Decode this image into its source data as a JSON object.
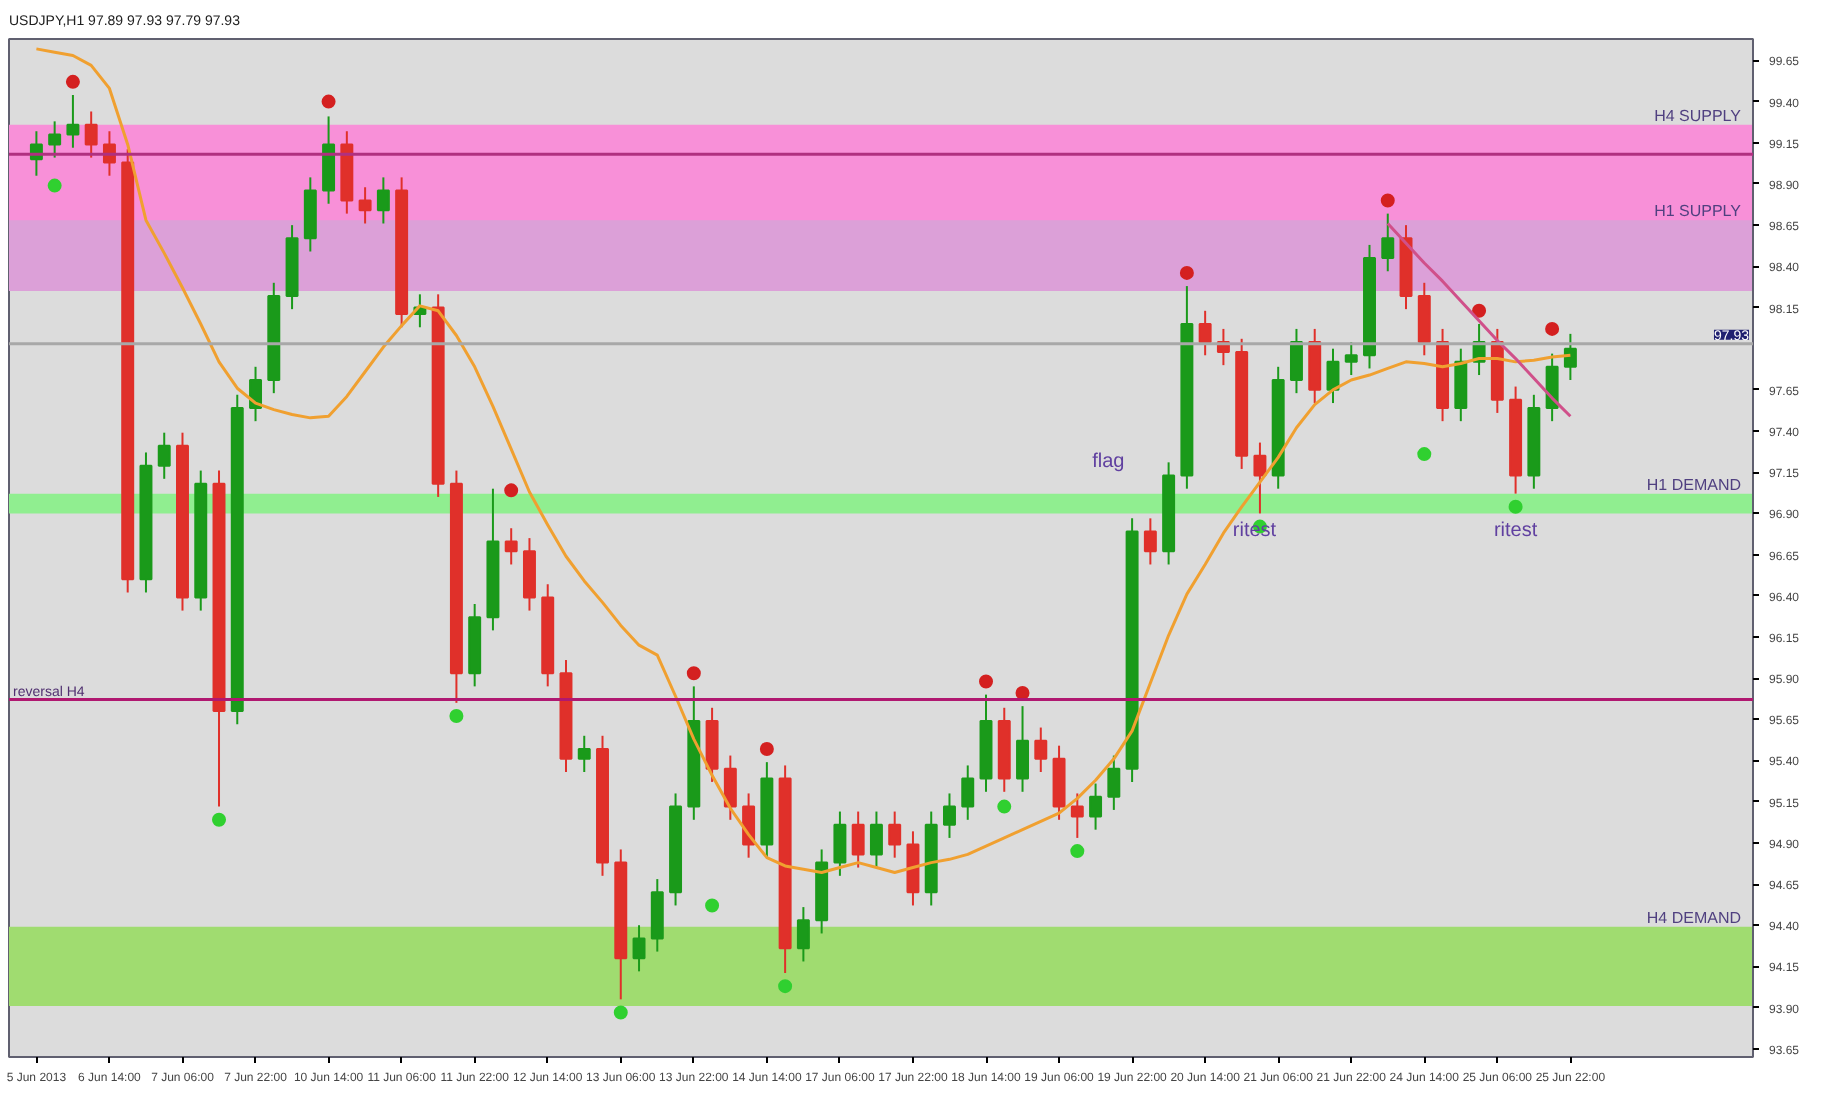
{
  "chart_data": {
    "type": "candlestick",
    "title": "USDJPY,H1 97.89 97.93 97.79 97.93",
    "categories": [
      "5 Jun 2013",
      null,
      null,
      null,
      "6 Jun 14:00",
      null,
      null,
      null,
      "7 Jun 06:00",
      null,
      null,
      null,
      "7 Jun 22:00",
      null,
      null,
      null,
      "10 Jun 14:00",
      null,
      null,
      null,
      "11 Jun 06:00",
      null,
      null,
      null,
      "11 Jun 22:00",
      null,
      null,
      null,
      "12 Jun 14:00",
      null,
      null,
      null,
      "13 Jun 06:00",
      null,
      null,
      null,
      "13 Jun 22:00",
      null,
      null,
      null,
      "14 Jun 14:00",
      null,
      null,
      null,
      "17 Jun 06:00",
      null,
      null,
      null,
      "17 Jun 22:00",
      null,
      null,
      null,
      "18 Jun 14:00",
      null,
      null,
      null,
      "19 Jun 06:00",
      null,
      null,
      null,
      "19 Jun 22:00",
      null,
      null,
      null,
      "20 Jun 14:00",
      null,
      null,
      null,
      "21 Jun 06:00",
      null,
      null,
      null,
      "21 Jun 22:00",
      null,
      null,
      null,
      "24 Jun 14:00",
      null,
      null,
      null,
      "25 Jun 06:00",
      null,
      null,
      null,
      "25 Jun 22:00"
    ],
    "ohlc": [
      [
        99.05,
        99.22,
        98.95,
        99.14
      ],
      [
        99.14,
        99.28,
        99.06,
        99.2
      ],
      [
        99.2,
        99.44,
        99.12,
        99.26
      ],
      [
        99.26,
        99.34,
        99.06,
        99.14
      ],
      [
        99.14,
        99.22,
        98.95,
        99.03
      ],
      [
        99.03,
        99.11,
        96.42,
        96.5
      ],
      [
        96.5,
        97.27,
        96.42,
        97.19
      ],
      [
        97.19,
        97.39,
        97.11,
        97.31
      ],
      [
        97.31,
        97.39,
        96.31,
        96.39
      ],
      [
        96.39,
        97.16,
        96.31,
        97.08
      ],
      [
        97.08,
        97.16,
        95.12,
        95.7
      ],
      [
        95.7,
        97.62,
        95.62,
        97.54
      ],
      [
        97.54,
        97.79,
        97.46,
        97.71
      ],
      [
        97.71,
        98.3,
        97.63,
        98.22
      ],
      [
        98.22,
        98.65,
        98.14,
        98.57
      ],
      [
        98.57,
        98.94,
        98.49,
        98.86
      ],
      [
        98.86,
        99.31,
        98.78,
        99.14
      ],
      [
        99.14,
        99.22,
        98.72,
        98.8
      ],
      [
        98.8,
        98.88,
        98.66,
        98.74
      ],
      [
        98.74,
        98.94,
        98.66,
        98.86
      ],
      [
        98.86,
        98.94,
        98.03,
        98.11
      ],
      [
        98.11,
        98.23,
        98.03,
        98.15
      ],
      [
        98.15,
        98.23,
        97.0,
        97.08
      ],
      [
        97.08,
        97.16,
        95.75,
        95.93
      ],
      [
        95.93,
        96.35,
        95.85,
        96.27
      ],
      [
        96.27,
        97.05,
        96.19,
        96.73
      ],
      [
        96.73,
        96.81,
        96.59,
        96.67
      ],
      [
        96.67,
        96.75,
        96.31,
        96.39
      ],
      [
        96.39,
        96.47,
        95.85,
        95.93
      ],
      [
        95.93,
        96.01,
        95.33,
        95.41
      ],
      [
        95.41,
        95.55,
        95.33,
        95.47
      ],
      [
        95.47,
        95.55,
        94.7,
        94.78
      ],
      [
        94.78,
        94.86,
        93.95,
        94.2
      ],
      [
        94.2,
        94.4,
        94.12,
        94.32
      ],
      [
        94.32,
        94.68,
        94.24,
        94.6
      ],
      [
        94.6,
        95.2,
        94.52,
        95.12
      ],
      [
        95.12,
        95.85,
        95.04,
        95.64
      ],
      [
        95.64,
        95.72,
        95.27,
        95.35
      ],
      [
        95.35,
        95.43,
        95.04,
        95.12
      ],
      [
        95.12,
        95.2,
        94.81,
        94.89
      ],
      [
        94.89,
        95.39,
        94.81,
        95.29
      ],
      [
        95.29,
        95.37,
        94.11,
        94.26
      ],
      [
        94.26,
        94.51,
        94.18,
        94.43
      ],
      [
        94.43,
        94.86,
        94.35,
        94.78
      ],
      [
        94.78,
        95.09,
        94.7,
        95.01
      ],
      [
        95.01,
        95.09,
        94.75,
        94.83
      ],
      [
        94.83,
        95.09,
        94.75,
        95.01
      ],
      [
        95.01,
        95.09,
        94.81,
        94.89
      ],
      [
        94.89,
        94.97,
        94.52,
        94.6
      ],
      [
        94.6,
        95.09,
        94.52,
        95.01
      ],
      [
        95.01,
        95.2,
        94.93,
        95.12
      ],
      [
        95.12,
        95.37,
        95.04,
        95.29
      ],
      [
        95.29,
        95.8,
        95.21,
        95.64
      ],
      [
        95.64,
        95.72,
        95.21,
        95.29
      ],
      [
        95.29,
        95.73,
        95.21,
        95.52
      ],
      [
        95.52,
        95.6,
        95.33,
        95.41
      ],
      [
        95.41,
        95.49,
        95.04,
        95.12
      ],
      [
        95.12,
        95.2,
        94.93,
        95.06
      ],
      [
        95.06,
        95.26,
        94.98,
        95.18
      ],
      [
        95.18,
        95.43,
        95.1,
        95.35
      ],
      [
        95.35,
        96.87,
        95.27,
        96.79
      ],
      [
        96.79,
        96.87,
        96.59,
        96.67
      ],
      [
        96.67,
        97.21,
        96.59,
        97.13
      ],
      [
        97.13,
        98.28,
        97.05,
        98.05
      ],
      [
        98.05,
        98.13,
        97.86,
        97.94
      ],
      [
        97.94,
        98.02,
        97.8,
        97.88
      ],
      [
        97.88,
        97.96,
        97.17,
        97.25
      ],
      [
        97.25,
        97.33,
        96.9,
        97.13
      ],
      [
        97.13,
        97.79,
        97.05,
        97.71
      ],
      [
        97.71,
        98.02,
        97.63,
        97.94
      ],
      [
        97.94,
        98.02,
        97.57,
        97.65
      ],
      [
        97.65,
        97.9,
        97.57,
        97.82
      ],
      [
        97.82,
        97.94,
        97.74,
        97.86
      ],
      [
        97.86,
        98.53,
        97.78,
        98.45
      ],
      [
        98.45,
        98.72,
        98.37,
        98.57
      ],
      [
        98.57,
        98.65,
        98.14,
        98.22
      ],
      [
        98.22,
        98.3,
        97.86,
        97.94
      ],
      [
        97.94,
        98.02,
        97.46,
        97.54
      ],
      [
        97.54,
        97.9,
        97.46,
        97.82
      ],
      [
        97.82,
        98.05,
        97.74,
        97.94
      ],
      [
        97.94,
        98.02,
        97.51,
        97.59
      ],
      [
        97.59,
        97.67,
        97.02,
        97.13
      ],
      [
        97.13,
        97.62,
        97.05,
        97.54
      ],
      [
        97.54,
        97.87,
        97.46,
        97.79
      ],
      [
        97.79,
        97.99,
        97.71,
        97.9
      ]
    ],
    "colors": [
      "#1a9a1a",
      "#1a9a1a",
      "#1a9a1a",
      "#e0302a",
      "#e0302a",
      "#e0302a",
      "#1a9a1a",
      "#1a9a1a",
      "#e0302a",
      "#1a9a1a",
      "#e0302a",
      "#1a9a1a",
      "#1a9a1a",
      "#1a9a1a",
      "#1a9a1a",
      "#1a9a1a",
      "#1a9a1a",
      "#e0302a",
      "#e0302a",
      "#1a9a1a",
      "#e0302a",
      "#1a9a1a",
      "#e0302a",
      "#e0302a",
      "#1a9a1a",
      "#1a9a1a",
      "#e0302a",
      "#e0302a",
      "#e0302a",
      "#e0302a",
      "#1a9a1a",
      "#e0302a",
      "#e0302a",
      "#1a9a1a",
      "#1a9a1a",
      "#1a9a1a",
      "#1a9a1a",
      "#e0302a",
      "#e0302a",
      "#e0302a",
      "#1a9a1a",
      "#e0302a",
      "#1a9a1a",
      "#1a9a1a",
      "#1a9a1a",
      "#e0302a",
      "#1a9a1a",
      "#e0302a",
      "#e0302a",
      "#1a9a1a",
      "#1a9a1a",
      "#1a9a1a",
      "#1a9a1a",
      "#e0302a",
      "#1a9a1a",
      "#e0302a",
      "#e0302a",
      "#e0302a",
      "#1a9a1a",
      "#1a9a1a",
      "#1a9a1a",
      "#e0302a",
      "#1a9a1a",
      "#1a9a1a",
      "#e0302a",
      "#e0302a",
      "#e0302a",
      "#e0302a",
      "#1a9a1a",
      "#1a9a1a",
      "#e0302a",
      "#1a9a1a",
      "#1a9a1a",
      "#1a9a1a",
      "#1a9a1a",
      "#e0302a",
      "#e0302a",
      "#e0302a",
      "#1a9a1a",
      "#1a9a1a",
      "#e0302a",
      "#e0302a",
      "#1a9a1a",
      "#1a9a1a",
      "#1a9a1a"
    ],
    "series": [
      {
        "type": "line",
        "color": "#f0a030",
        "values": [
          99.72,
          99.7,
          99.68,
          99.62,
          99.48,
          99.14,
          98.68,
          98.48,
          98.27,
          98.05,
          97.82,
          97.66,
          97.57,
          97.53,
          97.5,
          97.48,
          97.49,
          97.61,
          97.76,
          97.91,
          98.04,
          98.16,
          98.13,
          97.98,
          97.79,
          97.55,
          97.29,
          97.03,
          96.83,
          96.64,
          96.49,
          96.36,
          96.22,
          96.1,
          96.04,
          95.79,
          95.53,
          95.31,
          95.11,
          94.95,
          94.81,
          94.76,
          94.74,
          94.72,
          94.75,
          94.78,
          94.75,
          94.72,
          94.75,
          94.78,
          94.8,
          94.83,
          94.88,
          94.93,
          94.98,
          95.03,
          95.08,
          95.17,
          95.28,
          95.41,
          95.58,
          95.87,
          96.16,
          96.41,
          96.59,
          96.78,
          96.94,
          97.09,
          97.24,
          97.42,
          97.56,
          97.65,
          97.71,
          97.74,
          97.78,
          97.82,
          97.81,
          97.79,
          97.81,
          97.84,
          97.84,
          97.82,
          97.83,
          97.85,
          97.86
        ]
      },
      {
        "type": "line",
        "color": "#d0508a",
        "values": [
          null,
          null,
          null,
          null,
          null,
          null,
          null,
          null,
          null,
          null,
          null,
          null,
          null,
          null,
          null,
          null,
          null,
          null,
          null,
          null,
          null,
          null,
          null,
          null,
          null,
          null,
          null,
          null,
          null,
          null,
          null,
          null,
          null,
          null,
          null,
          null,
          null,
          null,
          null,
          null,
          null,
          null,
          null,
          null,
          null,
          null,
          null,
          null,
          null,
          null,
          null,
          null,
          null,
          null,
          null,
          null,
          null,
          null,
          null,
          null,
          null,
          null,
          null,
          null,
          null,
          null,
          null,
          null,
          null,
          null,
          null,
          null,
          null,
          null,
          98.66,
          98.54,
          98.42,
          98.31,
          98.19,
          98.07,
          97.95,
          97.84,
          97.72,
          97.6,
          97.49
        ]
      },
      {
        "type": "scatter",
        "color": "#d42020",
        "marker": "circle",
        "values": [
          null,
          null,
          99.52,
          null,
          null,
          null,
          null,
          null,
          null,
          null,
          null,
          null,
          null,
          null,
          null,
          null,
          99.4,
          null,
          null,
          null,
          null,
          null,
          null,
          null,
          null,
          null,
          97.04,
          null,
          null,
          null,
          null,
          null,
          null,
          null,
          null,
          null,
          95.93,
          null,
          null,
          null,
          95.47,
          null,
          null,
          null,
          null,
          null,
          null,
          null,
          null,
          null,
          null,
          null,
          95.88,
          null,
          95.81,
          null,
          null,
          null,
          null,
          null,
          null,
          null,
          null,
          98.36,
          null,
          null,
          null,
          null,
          null,
          null,
          null,
          null,
          null,
          null,
          98.8,
          null,
          null,
          null,
          null,
          98.13,
          null,
          null,
          null,
          98.02,
          null
        ]
      },
      {
        "type": "scatter",
        "color": "#30d030",
        "marker": "circle",
        "values": [
          null,
          98.89,
          null,
          null,
          null,
          null,
          null,
          null,
          null,
          null,
          95.04,
          null,
          null,
          null,
          null,
          null,
          null,
          null,
          null,
          null,
          null,
          null,
          null,
          95.67,
          null,
          null,
          null,
          null,
          null,
          null,
          null,
          null,
          93.87,
          null,
          null,
          null,
          null,
          94.52,
          null,
          null,
          null,
          94.03,
          null,
          null,
          null,
          null,
          null,
          null,
          null,
          null,
          null,
          null,
          null,
          95.12,
          null,
          null,
          null,
          94.85,
          null,
          null,
          null,
          null,
          null,
          null,
          null,
          null,
          null,
          96.82,
          null,
          null,
          null,
          null,
          null,
          null,
          null,
          null,
          97.26,
          null,
          null,
          null,
          null,
          96.94,
          null,
          null,
          null
        ]
      }
    ],
    "bands": [
      {
        "axis": "y",
        "from": 98.64,
        "to": 99.26,
        "label": "H4 SUPPLY",
        "color": "#f890d8"
      },
      {
        "axis": "y",
        "from": 98.25,
        "to": 98.68,
        "label": "H1 SUPPLY",
        "color": "#dca0d8"
      },
      {
        "axis": "y",
        "from": 96.9,
        "to": 97.02,
        "label": "H1 DEMAND",
        "color": "#90ee90"
      },
      {
        "axis": "y",
        "from": 93.91,
        "to": 94.39,
        "label": "H4 DEMAND",
        "color": "#a0dc70"
      }
    ],
    "ref_lines": [
      {
        "axis": "y",
        "value": 99.08,
        "color": "#b03080"
      },
      {
        "axis": "y",
        "value": 95.77,
        "label": "reversal H4",
        "color": "#b01870"
      },
      {
        "axis": "y",
        "value": 97.93,
        "label": "97.93",
        "color": "#a8a8a8"
      }
    ],
    "annotations": [
      "flag",
      "ritest",
      "ritest"
    ],
    "ylim": [
      93.6,
      99.78
    ],
    "yticks": [
      {
        "value": 93.65,
        "label": "93.65"
      },
      {
        "value": 93.9,
        "label": "93.90"
      },
      {
        "value": 94.15,
        "label": "94.15"
      },
      {
        "value": 94.4,
        "label": "94.40"
      },
      {
        "value": 94.65,
        "label": "94.65"
      },
      {
        "value": 94.9,
        "label": "94.90"
      },
      {
        "value": 95.15,
        "label": "95.15"
      },
      {
        "value": 95.4,
        "label": "95.40"
      },
      {
        "value": 95.65,
        "label": "95.65"
      },
      {
        "value": 95.9,
        "label": "95.90"
      },
      {
        "value": 96.15,
        "label": "96.15"
      },
      {
        "value": 96.4,
        "label": "96.40"
      },
      {
        "value": 96.65,
        "label": "96.65"
      },
      {
        "value": 96.9,
        "label": "96.90"
      },
      {
        "value": 97.15,
        "label": "97.15"
      },
      {
        "value": 97.4,
        "label": "97.40"
      },
      {
        "value": 97.65,
        "label": "97.65"
      },
      {
        "value": 98.15,
        "label": "98.15"
      },
      {
        "value": 98.4,
        "label": "98.40"
      },
      {
        "value": 98.65,
        "label": "98.65"
      },
      {
        "value": 98.9,
        "label": "98.90"
      },
      {
        "value": 99.15,
        "label": "99.15"
      },
      {
        "value": 99.4,
        "label": "99.40"
      },
      {
        "value": 99.65,
        "label": "99.65"
      }
    ],
    "grid": false
  }
}
